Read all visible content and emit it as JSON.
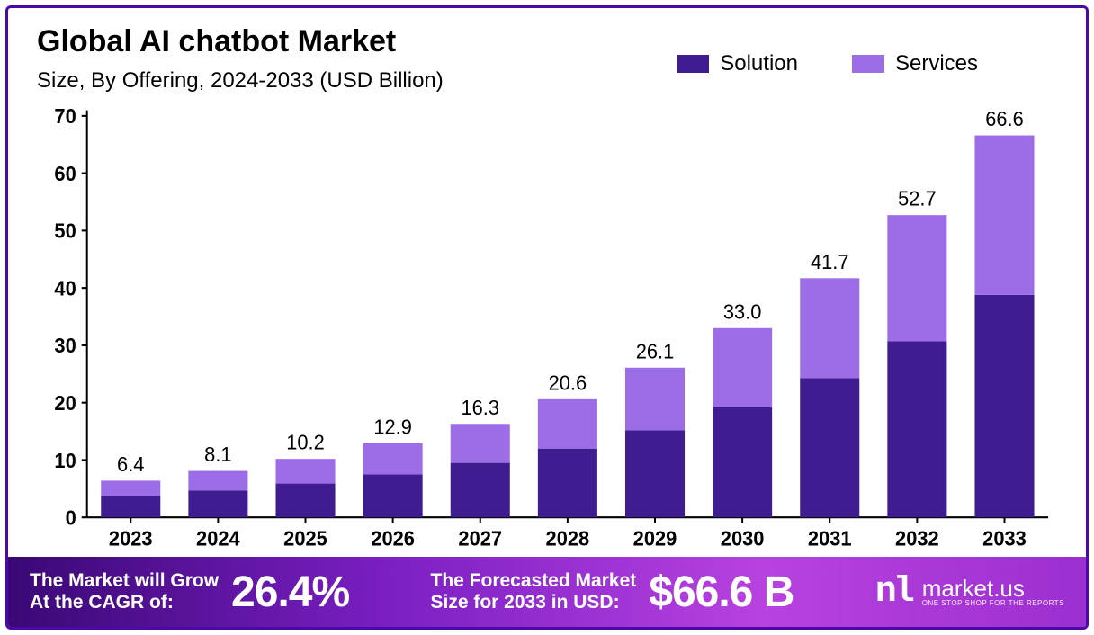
{
  "title": "Global AI chatbot Market",
  "subtitle": "Size, By Offering, 2024-2033 (USD Billion)",
  "chart": {
    "type": "stacked-bar",
    "categories": [
      "2023",
      "2024",
      "2025",
      "2026",
      "2027",
      "2028",
      "2029",
      "2030",
      "2031",
      "2032",
      "2033"
    ],
    "totals": [
      6.4,
      8.1,
      10.2,
      12.9,
      16.3,
      20.6,
      26.1,
      33.0,
      41.7,
      52.7,
      66.6
    ],
    "series": [
      {
        "name": "Solution",
        "color": "#3f1c8f",
        "values": [
          3.7,
          4.7,
          5.9,
          7.5,
          9.5,
          12.0,
          15.2,
          19.2,
          24.3,
          30.7,
          38.8
        ]
      },
      {
        "name": "Services",
        "color": "#9d6de8",
        "values": [
          2.7,
          3.4,
          4.3,
          5.4,
          6.8,
          8.6,
          10.9,
          13.8,
          17.4,
          22.0,
          27.8
        ]
      }
    ],
    "ylim": [
      0,
      70
    ],
    "ytick_step": 10,
    "bar_width_ratio": 0.68,
    "axis_color": "#000000",
    "background_color": "#ffffff",
    "label_fontsize": 22,
    "title_fontsize": 34
  },
  "legend": {
    "items": [
      {
        "label": "Solution",
        "color": "#3f1c8f"
      },
      {
        "label": "Services",
        "color": "#9d6de8"
      }
    ]
  },
  "footer": {
    "cagr_text_l1": "The Market will Grow",
    "cagr_text_l2": "At the CAGR of:",
    "cagr_value": "26.4%",
    "forecast_text_l1": "The Forecasted Market",
    "forecast_text_l2": "Size for 2033 in USD:",
    "forecast_value": "$66.6 B",
    "brand_logo": "nl",
    "brand_name": "market.us",
    "brand_tag": "ONE STOP SHOP FOR THE REPORTS",
    "gradient": [
      "#3a0875",
      "#7a1fc2",
      "#b842e0",
      "#9c2fd0"
    ]
  },
  "frame_border_color": "#4b0aa5"
}
